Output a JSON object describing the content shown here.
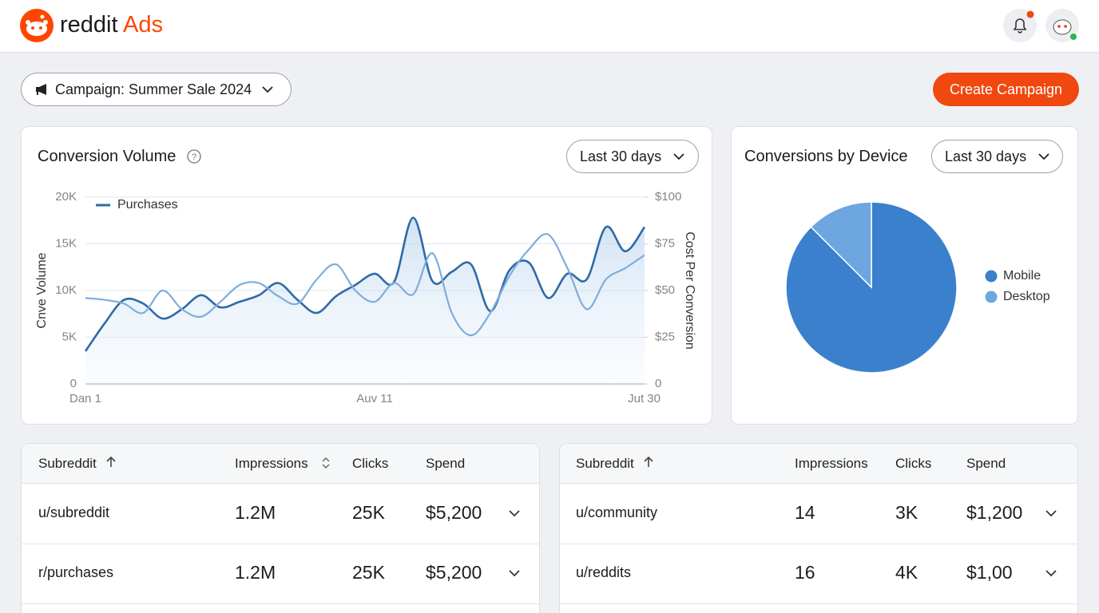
{
  "header": {
    "brand": "reddit",
    "product": "Ads"
  },
  "toolbar": {
    "campaign": "Campaign: Summer Sale 2024",
    "create_button": "Create Campaign"
  },
  "chart_data": [
    {
      "type": "line",
      "title": "Conversion Volume",
      "range": "Last 30 days",
      "ylabel": "Cnve Volume",
      "y2label": "Cost Per Conversion",
      "categories": [
        "Dan 1",
        null,
        null,
        null,
        null,
        null,
        null,
        null,
        null,
        null,
        null,
        null,
        null,
        null,
        null,
        "Auv 11",
        null,
        null,
        null,
        null,
        null,
        null,
        null,
        null,
        null,
        null,
        null,
        null,
        null,
        "Jut 30"
      ],
      "series": [
        {
          "name": "Purchases",
          "color": "#2f6aa8",
          "values": [
            3500,
            6500,
            9000,
            8600,
            7000,
            8000,
            9500,
            8200,
            8800,
            9500,
            10800,
            9000,
            7600,
            9400,
            10600,
            11800,
            10900,
            17800,
            11000,
            12000,
            12800,
            7800,
            12200,
            13000,
            9200,
            11800,
            11200,
            16800,
            14200,
            16800
          ]
        },
        {
          "color": "#7eaddb",
          "axis": "y2",
          "values": [
            46,
            45,
            43,
            38,
            50,
            40,
            36,
            44,
            53,
            54,
            47,
            43,
            56,
            64,
            50,
            44,
            54,
            48,
            70,
            38,
            26,
            38,
            58,
            72,
            80,
            62,
            40,
            56,
            62,
            69
          ]
        }
      ],
      "ylim": [
        0,
        20000
      ],
      "yticks": [
        0,
        {
          "value": 5000,
          "label": "5K"
        },
        {
          "value": 10000,
          "label": "10K"
        },
        {
          "value": 15000,
          "label": "15K"
        },
        {
          "value": 20000,
          "label": "20K"
        }
      ],
      "y2lim": [
        0,
        100
      ],
      "y2ticks": [
        0,
        {
          "value": 25,
          "label": "$25"
        },
        {
          "value": 50,
          "label": "$50"
        },
        {
          "value": 75,
          "label": "$75"
        },
        {
          "value": 100,
          "label": "$100"
        }
      ],
      "grid": true,
      "legend": "top-left"
    },
    {
      "type": "pie",
      "title": "Conversions by Device",
      "range": "Last 30 days",
      "categories": [
        "Mobile",
        "Desktop"
      ],
      "values": [
        87.5,
        12.5
      ],
      "colors": [
        "#3a80cc",
        "#6ea6df"
      ],
      "legend": "right"
    }
  ],
  "tables": [
    {
      "columns": [
        "Subreddit",
        "Impressions",
        "Clicks",
        "Spend"
      ],
      "rows": [
        [
          "u/subreddit",
          "1.2M",
          "25K",
          "$5,200"
        ],
        [
          "r/purchases",
          "1.2M",
          "25K",
          "$5,200"
        ]
      ]
    },
    {
      "columns": [
        "Subreddit",
        "Impressions",
        "Clicks",
        "Spend"
      ],
      "rows": [
        [
          "u/community",
          "14",
          "3K",
          "$1,200"
        ],
        [
          "u/reddits",
          "16",
          "4K",
          "$1,00"
        ]
      ]
    }
  ]
}
